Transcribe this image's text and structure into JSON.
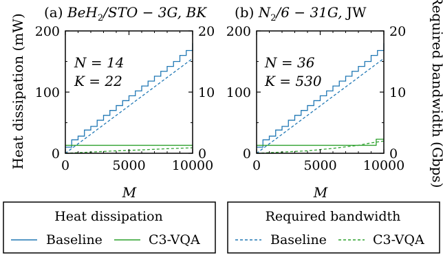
{
  "colors": {
    "baseline": "#1f77b4",
    "c3vqa": "#2ca02c"
  },
  "chart_data": [
    {
      "type": "line",
      "title_plain": "(a) ",
      "title_italic": "BeH",
      "title_sub": "2",
      "title_rest_italic": "/STO − 3G, BK",
      "annotations": [
        "N = 14",
        "K = 22"
      ],
      "xlabel": "M",
      "ylabel_left": "Heat dissipation (mW)",
      "x_ticks": [
        "0",
        "5000",
        "10000"
      ],
      "y_left_ticks": [
        "0",
        "100",
        "200"
      ],
      "y_right_ticks": [
        "0",
        "10",
        "20"
      ],
      "xlim": [
        0,
        10000
      ],
      "ylim_left": [
        0,
        200
      ],
      "ylim_right": [
        0,
        20
      ],
      "series": [
        {
          "name": "Baseline",
          "axis": "left",
          "style": "step",
          "x": [
            0,
            500,
            1000,
            1500,
            2000,
            2500,
            3000,
            3500,
            4000,
            4500,
            5000,
            5500,
            6000,
            6500,
            7000,
            7500,
            8000,
            8500,
            9000,
            9500,
            10000
          ],
          "y": [
            10,
            22,
            28,
            38,
            44,
            54,
            62,
            70,
            78,
            86,
            94,
            102,
            110,
            118,
            126,
            134,
            142,
            150,
            160,
            168,
            180
          ]
        },
        {
          "name": "C3-VQA",
          "axis": "left",
          "style": "step",
          "x": [
            0,
            10000
          ],
          "y": [
            13,
            13
          ]
        },
        {
          "name": "Baseline",
          "axis": "right",
          "style": "dashed",
          "x": [
            0,
            10000
          ],
          "y": [
            0,
            15.5
          ]
        },
        {
          "name": "C3-VQA",
          "axis": "right",
          "style": "dashed",
          "x": [
            0,
            2000,
            4000,
            6000,
            8000,
            10000
          ],
          "y": [
            0,
            0.2,
            0.4,
            0.55,
            0.75,
            0.9
          ]
        }
      ]
    },
    {
      "type": "line",
      "title_plain": "(b) ",
      "title_italic": "N",
      "title_sub": "2",
      "title_rest_italic": "/6 − 31G, ",
      "title_rest_plain": "JW",
      "annotations": [
        "N = 36",
        "K = 530"
      ],
      "xlabel": "M",
      "ylabel_right": "Required bandwidth (Gbps)",
      "x_ticks": [
        "0",
        "5000",
        "10000"
      ],
      "y_left_ticks": [
        "0",
        "100",
        "200"
      ],
      "y_right_ticks": [
        "0",
        "10",
        "20"
      ],
      "xlim": [
        0,
        10000
      ],
      "ylim_left": [
        0,
        200
      ],
      "ylim_right": [
        0,
        20
      ],
      "series": [
        {
          "name": "Baseline",
          "axis": "left",
          "style": "step",
          "x": [
            0,
            500,
            1000,
            1500,
            2000,
            2500,
            3000,
            3500,
            4000,
            4500,
            5000,
            5500,
            6000,
            6500,
            7000,
            7500,
            8000,
            8500,
            9000,
            9500,
            10000
          ],
          "y": [
            10,
            22,
            28,
            38,
            44,
            54,
            62,
            70,
            78,
            86,
            94,
            102,
            110,
            118,
            126,
            134,
            142,
            150,
            160,
            168,
            180
          ]
        },
        {
          "name": "C3-VQA",
          "axis": "left",
          "style": "step",
          "x": [
            0,
            9400,
            9400,
            10000
          ],
          "y": [
            13,
            13,
            23,
            23
          ]
        },
        {
          "name": "Baseline",
          "axis": "right",
          "style": "dashed",
          "x": [
            0,
            10000
          ],
          "y": [
            0,
            15.5
          ]
        },
        {
          "name": "C3-VQA",
          "axis": "right",
          "style": "dashed",
          "x": [
            0,
            2000,
            4000,
            6000,
            8000,
            9000,
            10000
          ],
          "y": [
            0,
            0.2,
            0.4,
            0.8,
            1.3,
            1.7,
            2.0
          ]
        }
      ]
    }
  ],
  "legends": [
    {
      "title": "Heat dissipation",
      "items": [
        "Baseline",
        "C3-VQA"
      ]
    },
    {
      "title": "Required bandwidth",
      "items": [
        "Baseline",
        "C3-VQA"
      ]
    }
  ]
}
